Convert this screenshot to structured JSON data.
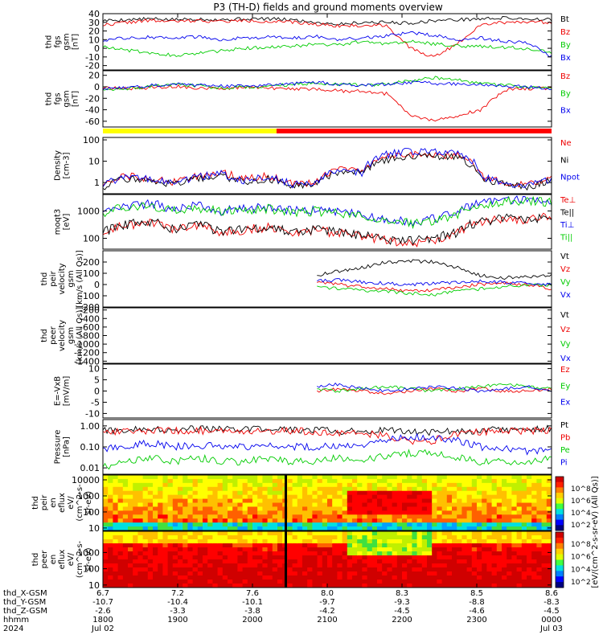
{
  "title": "P3 (TH-D) fields and ground moments overview",
  "colors": {
    "black": "#000000",
    "red": "#ee0000",
    "green": "#00cc00",
    "blue": "#0000ee",
    "yellow": "#ffff00",
    "orbit_red": "#ff0000"
  },
  "chart_data": [
    {
      "type": "line",
      "panel": "fgs-gsm",
      "ylabel": [
        "thd",
        "fgs",
        "gsm",
        "[nT]"
      ],
      "ylim": [
        -25,
        40
      ],
      "ticks": [
        -20,
        -10,
        0,
        10,
        20,
        30,
        40
      ],
      "tick_labels": [
        "-20",
        "-10",
        "0",
        "10",
        "20",
        "30",
        "40"
      ],
      "series": [
        {
          "name": "Bt",
          "color": "#000000",
          "values": [
            32,
            33,
            34,
            33,
            34,
            33,
            34,
            34,
            33,
            30,
            28,
            30,
            30,
            29,
            32,
            33,
            34,
            35,
            34,
            33
          ]
        },
        {
          "name": "Bz",
          "color": "#ee0000",
          "values": [
            27,
            30,
            32,
            31,
            32,
            31,
            32,
            31,
            30,
            28,
            26,
            26,
            27,
            0,
            -10,
            5,
            28,
            30,
            31,
            30
          ]
        },
        {
          "name": "By",
          "color": "#00cc00",
          "values": [
            2,
            -2,
            -5,
            -8,
            -6,
            -3,
            0,
            1,
            2,
            5,
            4,
            8,
            5,
            8,
            5,
            3,
            2,
            1,
            0,
            -4
          ]
        },
        {
          "name": "Bx",
          "color": "#0000ee",
          "values": [
            9,
            12,
            13,
            12,
            13,
            10,
            12,
            13,
            12,
            14,
            10,
            12,
            14,
            18,
            15,
            10,
            12,
            8,
            6,
            -10
          ]
        }
      ]
    },
    {
      "type": "line",
      "panel": "fgs-gsm-2",
      "ylabel": [
        "thd",
        "fgs",
        "gsm",
        "[nT]"
      ],
      "ylim": [
        -70,
        28
      ],
      "ticks": [
        -60,
        -40,
        -20,
        0,
        20
      ],
      "tick_labels": [
        "-60",
        "-40",
        "-20",
        "0",
        "20"
      ],
      "series": [
        {
          "name": "Bz",
          "color": "#ee0000",
          "values": [
            -2,
            -3,
            -2,
            1,
            -2,
            -3,
            -1,
            -2,
            -4,
            -4,
            -7,
            -8,
            -12,
            -48,
            -60,
            -50,
            -40,
            -5,
            -3,
            -2
          ]
        },
        {
          "name": "By",
          "color": "#00cc00",
          "values": [
            -4,
            -3,
            0,
            4,
            2,
            -2,
            0,
            1,
            4,
            6,
            5,
            3,
            5,
            10,
            16,
            12,
            5,
            3,
            -1,
            -2
          ]
        },
        {
          "name": "Bx",
          "color": "#0000ee",
          "values": [
            -4,
            -2,
            2,
            5,
            3,
            1,
            2,
            3,
            5,
            8,
            4,
            3,
            4,
            8,
            6,
            5,
            4,
            2,
            0,
            -4
          ]
        }
      ]
    },
    {
      "type": "line",
      "panel": "density",
      "scale": "log",
      "ylabel": [
        "Density",
        "[cm-3]"
      ],
      "ylim": [
        0.3,
        130
      ],
      "ticks": [
        1,
        10,
        100
      ],
      "tick_labels": [
        "1",
        "10",
        "100"
      ],
      "series": [
        {
          "name": "Ne",
          "color": "#ee0000",
          "values": [
            0.8,
            2,
            1.5,
            1,
            2,
            3,
            1.5,
            2,
            0.9,
            1,
            4,
            3,
            15,
            20,
            20,
            18,
            2,
            1,
            0.8,
            1.5
          ]
        },
        {
          "name": "Ni",
          "color": "#000000",
          "values": [
            0.6,
            1.5,
            1.2,
            0.8,
            1.5,
            2,
            1,
            1.5,
            0.7,
            0.8,
            3,
            2.5,
            12,
            18,
            18,
            15,
            1.5,
            0.8,
            0.6,
            1.2
          ]
        },
        {
          "name": "Npot",
          "color": "#0000ee",
          "values": [
            0.7,
            1.8,
            1.4,
            0.9,
            1.8,
            2.5,
            1.2,
            1.8,
            0.8,
            0.9,
            3.5,
            2.8,
            20,
            30,
            30,
            25,
            1.8,
            0.9,
            0.7,
            1.4
          ]
        }
      ]
    },
    {
      "type": "line",
      "panel": "temperature",
      "scale": "log",
      "ylabel": [
        "moqt3",
        "[eV]"
      ],
      "ylim": [
        40,
        4000
      ],
      "ticks": [
        100,
        1000
      ],
      "tick_labels": [
        "100",
        "1000"
      ],
      "series": [
        {
          "name": "Te⊥",
          "color": "#ee0000",
          "values": [
            150,
            300,
            400,
            200,
            300,
            150,
            200,
            250,
            150,
            200,
            150,
            120,
            80,
            70,
            80,
            150,
            400,
            500,
            500,
            600
          ]
        },
        {
          "name": "Te||",
          "color": "#000000",
          "values": [
            160,
            320,
            420,
            210,
            320,
            160,
            210,
            260,
            160,
            210,
            160,
            130,
            90,
            80,
            90,
            160,
            420,
            520,
            520,
            620
          ]
        },
        {
          "name": "Ti⊥",
          "color": "#0000ee",
          "values": [
            1000,
            1500,
            1800,
            1200,
            1500,
            1000,
            1200,
            1400,
            1000,
            1100,
            900,
            700,
            500,
            400,
            500,
            800,
            2000,
            2500,
            2600,
            2500
          ]
        },
        {
          "name": "Ti||",
          "color": "#00cc00",
          "values": [
            900,
            1300,
            1600,
            1000,
            1300,
            900,
            1100,
            1200,
            900,
            1000,
            800,
            600,
            400,
            350,
            400,
            700,
            1800,
            2200,
            2300,
            2200
          ]
        }
      ]
    },
    {
      "type": "line",
      "panel": "peir-velocity",
      "ylabel": [
        "thd",
        "peir",
        "velocity",
        "gsm",
        "[km/s (All Qs)]"
      ],
      "ylim": [
        -200,
        300
      ],
      "ticks": [
        -200,
        -100,
        0,
        100,
        200
      ],
      "tick_labels": [
        "-200",
        "-100",
        "0",
        "100",
        "200"
      ],
      "series": [
        {
          "name": "Vt",
          "color": "#000000",
          "values": [
            null,
            null,
            null,
            null,
            null,
            null,
            null,
            null,
            null,
            80,
            120,
            150,
            200,
            210,
            200,
            150,
            80,
            60,
            70,
            80
          ]
        },
        {
          "name": "Vz",
          "color": "#ee0000",
          "values": [
            null,
            null,
            null,
            null,
            null,
            null,
            null,
            null,
            null,
            20,
            0,
            -20,
            -40,
            -60,
            -50,
            -20,
            0,
            10,
            0,
            -40
          ]
        },
        {
          "name": "Vy",
          "color": "#00cc00",
          "values": [
            null,
            null,
            null,
            null,
            null,
            null,
            null,
            null,
            null,
            -10,
            -40,
            -50,
            -60,
            -80,
            -90,
            -60,
            -40,
            -20,
            -10,
            0
          ]
        },
        {
          "name": "Vx",
          "color": "#0000ee",
          "values": [
            null,
            null,
            null,
            null,
            null,
            null,
            null,
            null,
            null,
            30,
            40,
            20,
            10,
            0,
            10,
            20,
            30,
            20,
            10,
            0
          ]
        }
      ]
    },
    {
      "type": "line",
      "panel": "peer-velocity",
      "ylabel": [
        "thd",
        "peer",
        "velocity",
        "gsm",
        "[km/s (All Qs)]"
      ],
      "ylim": [
        -1450,
        -150
      ],
      "ticks": [
        -1400,
        -1200,
        -1000,
        -800,
        -600,
        -400,
        -200
      ],
      "tick_labels": [
        "-1400",
        "-1200",
        "-1000",
        "-800",
        "-600",
        "-400",
        "-200"
      ],
      "legend": [
        "Vt",
        "Vz",
        "Vy",
        "Vx"
      ],
      "legend_colors": [
        "#000000",
        "#ee0000",
        "#00cc00",
        "#0000ee"
      ]
    },
    {
      "type": "line",
      "panel": "e-field",
      "ylabel": [
        "E=-VxB",
        "[mV/m]"
      ],
      "ylim": [
        -12,
        12
      ],
      "ticks": [
        -10,
        -5,
        0,
        5,
        10
      ],
      "tick_labels": [
        "-10",
        "-5",
        "0",
        "5",
        "10"
      ],
      "series": [
        {
          "name": "Ez",
          "color": "#ee0000",
          "values": [
            null,
            null,
            null,
            null,
            null,
            null,
            null,
            null,
            null,
            0,
            1,
            0,
            -1,
            0,
            1,
            0,
            1,
            0,
            0,
            1
          ]
        },
        {
          "name": "Ey",
          "color": "#00cc00",
          "values": [
            null,
            null,
            null,
            null,
            null,
            null,
            null,
            null,
            null,
            1,
            0,
            1,
            2,
            1,
            0,
            1,
            2,
            3,
            2,
            1
          ]
        },
        {
          "name": "Ex",
          "color": "#0000ee",
          "values": [
            null,
            null,
            null,
            null,
            null,
            null,
            null,
            null,
            null,
            2,
            3,
            1,
            0,
            1,
            2,
            1,
            0,
            1,
            2,
            0
          ]
        }
      ]
    },
    {
      "type": "line",
      "panel": "pressure",
      "scale": "log",
      "ylabel": [
        "Pressure",
        "[nPa]"
      ],
      "ylim": [
        0.005,
        2
      ],
      "ticks": [
        0.01,
        0.1,
        1
      ],
      "tick_labels": [
        "0.01",
        "0.10",
        "1.00"
      ],
      "series": [
        {
          "name": "Pt",
          "color": "#000000",
          "values": [
            0.6,
            0.65,
            0.7,
            0.7,
            0.7,
            0.65,
            0.7,
            0.7,
            0.7,
            0.6,
            0.55,
            0.6,
            0.6,
            0.55,
            0.5,
            0.55,
            0.6,
            0.65,
            0.7,
            0.7
          ]
        },
        {
          "name": "Pb",
          "color": "#ee0000",
          "values": [
            0.5,
            0.55,
            0.6,
            0.6,
            0.6,
            0.55,
            0.6,
            0.6,
            0.6,
            0.5,
            0.45,
            0.45,
            0.35,
            0.15,
            0.2,
            0.4,
            0.5,
            0.55,
            0.6,
            0.6
          ]
        },
        {
          "name": "Pe",
          "color": "#00cc00",
          "values": [
            0.01,
            0.02,
            0.03,
            0.02,
            0.03,
            0.02,
            0.02,
            0.03,
            0.02,
            0.02,
            0.03,
            0.02,
            0.04,
            0.05,
            0.05,
            0.03,
            0.02,
            0.02,
            0.02,
            0.03
          ]
        },
        {
          "name": "Pi",
          "color": "#0000ee",
          "values": [
            0.08,
            0.12,
            0.15,
            0.1,
            0.12,
            0.1,
            0.1,
            0.12,
            0.1,
            0.1,
            0.12,
            0.1,
            0.2,
            0.3,
            0.3,
            0.2,
            0.1,
            0.08,
            0.06,
            0.08
          ]
        }
      ]
    },
    {
      "type": "heatmap",
      "panel": "peir-en-eflux",
      "scale": "log",
      "ylabel": [
        "thd",
        "peir",
        "en",
        "eflux",
        "eV/",
        "(cm^2-s-",
        "sr-eV)"
      ],
      "ylim": [
        7,
        20000
      ],
      "ticks": [
        10,
        100,
        1000,
        10000
      ],
      "tick_labels": [
        "10",
        "100",
        "1000",
        "10000"
      ]
    },
    {
      "type": "heatmap",
      "panel": "peer-en-eflux",
      "scale": "log",
      "ylabel": [
        "thd",
        "peer",
        "en",
        "eflux",
        "eV/",
        "(cm^2-s-",
        "sr-eV)"
      ],
      "ylim": [
        7,
        20000
      ],
      "ticks": [
        10,
        100,
        1000
      ],
      "tick_labels": [
        "10",
        "100",
        "1000"
      ],
      "colorbar_label": "[eV/(cm^2-s-sr-eV) (All Qs)]"
    }
  ],
  "eflux_legend_colors": [
    "#cc0000",
    "#e83000",
    "#cc0000",
    "#e83000"
  ],
  "colorbar": {
    "label": "[eV/(cm^2-s-sr-eV) (All Qs)]",
    "upper_ticks": [
      "10^8",
      "10^6",
      "10^4",
      "10^2"
    ],
    "lower_ticks": [
      "10^8",
      "10^6",
      "10^4",
      "10^2"
    ]
  },
  "xaxis": {
    "rows": [
      {
        "label": "thd_X-GSM",
        "values": [
          "6.7",
          "7.2",
          "7.6",
          "8.0",
          "8.3",
          "8.5",
          "8.6"
        ]
      },
      {
        "label": "thd_Y-GSM",
        "values": [
          "-10.7",
          "-10.4",
          "-10.1",
          "-9.7",
          "-9.3",
          "-8.8",
          "-8.3"
        ]
      },
      {
        "label": "thd_Z-GSM",
        "values": [
          "-2.6",
          "-3.3",
          "-3.8",
          "-4.2",
          "-4.5",
          "-4.6",
          "-4.5"
        ]
      },
      {
        "label": "hhmm",
        "values": [
          "1800",
          "1900",
          "2000",
          "2100",
          "2200",
          "2300",
          "0000"
        ]
      },
      {
        "label": "2024",
        "values": [
          "Jul 02",
          "",
          "",
          "",
          "",
          "",
          "Jul 03"
        ]
      }
    ]
  }
}
